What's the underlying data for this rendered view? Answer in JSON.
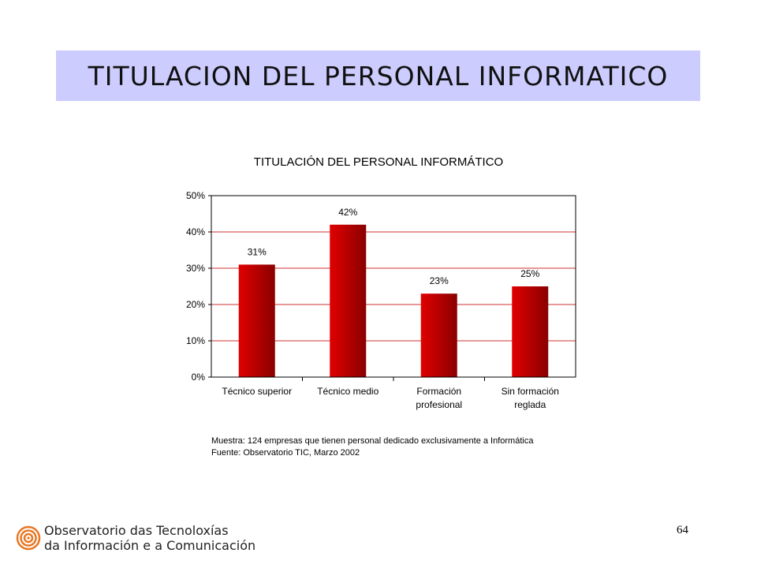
{
  "slide": {
    "title": "TITULACION DEL PERSONAL INFORMATICO",
    "page_number": "64"
  },
  "chart_data": {
    "type": "bar",
    "title": "TITULACIÓN DEL PERSONAL INFORMÁTICO",
    "categories": [
      [
        "Técnico superior"
      ],
      [
        "Técnico medio"
      ],
      [
        "Formación",
        "profesional"
      ],
      [
        "Sin formación",
        "reglada"
      ]
    ],
    "values": [
      31,
      42,
      23,
      25
    ],
    "value_labels": [
      "31%",
      "42%",
      "23%",
      "25%"
    ],
    "y_ticks": [
      "0%",
      "10%",
      "20%",
      "30%",
      "40%",
      "50%"
    ],
    "ylim": [
      0,
      50
    ],
    "grid": true,
    "legend": "none",
    "colors": {
      "bar": "#e00000",
      "bar_dark": "#8a0000",
      "grid": "#cc3333"
    }
  },
  "notes": {
    "sample": "Muestra: 124 empresas que tienen personal dedicado exclusivamente a Informática",
    "source": "Fuente: Observatorio TIC,  Marzo 2002"
  },
  "logo": {
    "line1": "Observatorio das Tecnoloxías",
    "line2": "da Información e a Comunicación",
    "color": "#e87722"
  }
}
